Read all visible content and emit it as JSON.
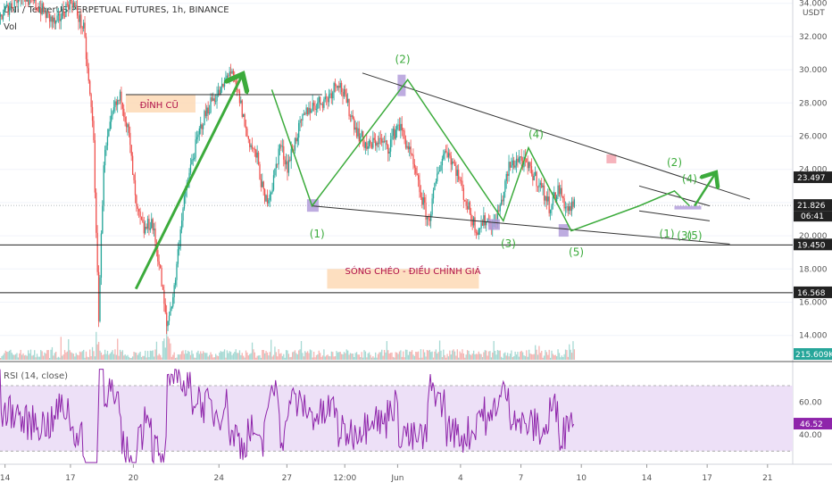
{
  "header": {
    "title": "UNI / TetherUS PERPETUAL FUTURES, 1h, BINANCE",
    "vol_label": "Vol",
    "currency": "USDT"
  },
  "colors": {
    "up": "#26a69a",
    "down": "#ef5350",
    "wave_green": "#3cab3c",
    "channel": "#333333",
    "rsi_line": "#8e24aa",
    "rsi_band": "#ede0f7",
    "box_purple": "#b39ddb",
    "box_orange": "#fdd9b5",
    "box_pink": "#f4a6b0"
  },
  "chart_data": [
    {
      "type": "line",
      "name_role": "price",
      "ylim": [
        13,
        34.5
      ],
      "y_ticks": [
        14,
        16,
        18,
        20,
        22,
        24,
        26,
        28,
        30,
        32,
        34
      ],
      "x_ticks": [
        "14",
        "17",
        "20",
        "24",
        "27",
        "12:00",
        "Jun",
        "4",
        "7",
        "10",
        "14",
        "17",
        "21"
      ],
      "anchors": [
        {
          "t": 0,
          "v": 33.2
        },
        {
          "t": 8,
          "v": 34.6
        },
        {
          "t": 15,
          "v": 33.8
        },
        {
          "t": 22,
          "v": 32.7
        },
        {
          "t": 28,
          "v": 34.3
        },
        {
          "t": 33,
          "v": 32.4
        },
        {
          "t": 37,
          "v": 26.0
        },
        {
          "t": 38,
          "v": 19.8
        },
        {
          "t": 39,
          "v": 15.2
        },
        {
          "t": 41,
          "v": 24.5
        },
        {
          "t": 45,
          "v": 27.6
        },
        {
          "t": 48,
          "v": 28.4
        },
        {
          "t": 51,
          "v": 26.0
        },
        {
          "t": 54,
          "v": 21.5
        },
        {
          "t": 57,
          "v": 20.3
        },
        {
          "t": 60,
          "v": 20.9
        },
        {
          "t": 63,
          "v": 18.4
        },
        {
          "t": 66,
          "v": 14.5
        },
        {
          "t": 69,
          "v": 16.8
        },
        {
          "t": 72,
          "v": 21.2
        },
        {
          "t": 76,
          "v": 24.5
        },
        {
          "t": 80,
          "v": 26.8
        },
        {
          "t": 84,
          "v": 28.2
        },
        {
          "t": 88,
          "v": 28.8
        },
        {
          "t": 91,
          "v": 30.0
        },
        {
          "t": 95,
          "v": 28.2
        },
        {
          "t": 98,
          "v": 26.0
        },
        {
          "t": 102,
          "v": 24.6
        },
        {
          "t": 105,
          "v": 22.0
        },
        {
          "t": 108,
          "v": 23.0
        },
        {
          "t": 111,
          "v": 25.5
        },
        {
          "t": 114,
          "v": 24.2
        },
        {
          "t": 118,
          "v": 26.2
        },
        {
          "t": 122,
          "v": 27.6
        },
        {
          "t": 126,
          "v": 28.0
        },
        {
          "t": 130,
          "v": 28.3
        },
        {
          "t": 134,
          "v": 29.4
        },
        {
          "t": 138,
          "v": 27.8
        },
        {
          "t": 142,
          "v": 26.2
        },
        {
          "t": 146,
          "v": 25.3
        },
        {
          "t": 150,
          "v": 25.8
        },
        {
          "t": 154,
          "v": 25.3
        },
        {
          "t": 158,
          "v": 26.8
        },
        {
          "t": 162,
          "v": 25.3
        },
        {
          "t": 166,
          "v": 23.0
        },
        {
          "t": 170,
          "v": 20.8
        },
        {
          "t": 174,
          "v": 24.0
        },
        {
          "t": 177,
          "v": 25.3
        },
        {
          "t": 181,
          "v": 24.0
        },
        {
          "t": 185,
          "v": 22.0
        },
        {
          "t": 189,
          "v": 20.4
        },
        {
          "t": 193,
          "v": 21.0
        },
        {
          "t": 196,
          "v": 20.6
        },
        {
          "t": 199,
          "v": 22.0
        },
        {
          "t": 202,
          "v": 24.1
        },
        {
          "t": 206,
          "v": 24.7
        },
        {
          "t": 210,
          "v": 24.0
        },
        {
          "t": 214,
          "v": 23.2
        },
        {
          "t": 218,
          "v": 21.8
        },
        {
          "t": 222,
          "v": 22.8
        },
        {
          "t": 225,
          "v": 21.6
        },
        {
          "t": 228,
          "v": 21.8
        }
      ],
      "price_labels": [
        {
          "value": 23.497,
          "text": "23.497",
          "color": "#222222"
        },
        {
          "value": 21.826,
          "text": "21.826",
          "color": "#222222"
        },
        {
          "value": 19.45,
          "text": "19.450",
          "color": "#222222"
        },
        {
          "value": 16.568,
          "text": "16.568",
          "color": "#222222"
        }
      ],
      "countdown": "06:41",
      "horizontal_lines": [
        19.45,
        16.568,
        21.826
      ],
      "resistance_line": {
        "t0": 50,
        "v0": 28.5,
        "t1": 128,
        "v1": 28.5
      },
      "channel_top": {
        "t0": 144,
        "v0": 29.8,
        "t1": 298,
        "v1": 22.2
      },
      "channel_bottom": {
        "t0": 124,
        "v0": 21.8,
        "t1": 290,
        "v1": 19.5
      },
      "small_channel_top": {
        "t0": 254,
        "v0": 23.0,
        "t1": 282,
        "v1": 21.8
      },
      "small_channel_bottom": {
        "t0": 254,
        "v0": 21.5,
        "t1": 282,
        "v1": 20.9
      },
      "impulse_arrow": {
        "t0": 54,
        "v0": 16.8,
        "t1": 96,
        "v1": 29.6
      },
      "wave_path": [
        {
          "t": 108,
          "v": 28.8
        },
        {
          "t": 124,
          "v": 21.8
        },
        {
          "t": 162,
          "v": 29.4
        },
        {
          "t": 200,
          "v": 20.9
        },
        {
          "t": 210,
          "v": 25.3
        },
        {
          "t": 227,
          "v": 20.3
        },
        {
          "t": 254,
          "v": 21.8
        },
        {
          "t": 268,
          "v": 22.7
        },
        {
          "t": 274,
          "v": 21.8
        }
      ],
      "small_wave_arrow": {
        "t0": 276,
        "v0": 21.8,
        "t1": 284,
        "v1": 23.7
      },
      "wave_labels": [
        {
          "text": "(1)",
          "t": 126,
          "v": 19.9
        },
        {
          "text": "(2)",
          "t": 160,
          "v": 30.4
        },
        {
          "text": "(3)",
          "t": 202,
          "v": 19.3
        },
        {
          "text": "(4)",
          "t": 213,
          "v": 25.9
        },
        {
          "text": "(5)",
          "t": 229,
          "v": 18.8
        },
        {
          "text": "(1)",
          "t": 265,
          "v": 19.9
        },
        {
          "text": "(2)",
          "t": 268,
          "v": 24.2
        },
        {
          "text": "(4)",
          "t": 274,
          "v": 23.2
        },
        {
          "text": "(3)",
          "t": 272,
          "v": 19.8
        },
        {
          "text": "(5)",
          "t": 276,
          "v": 19.8
        }
      ],
      "notes": [
        {
          "text": "ĐỈNH CŨ",
          "t": 52,
          "v": 27.7
        },
        {
          "text": "SÓNG CHÉO - ĐIỀU CHỈNH GIÁ",
          "t": 130,
          "v": 17.7
        }
      ],
      "last_vol_label": "215.609K"
    },
    {
      "type": "line",
      "name_role": "rsi",
      "label": "RSI (14, close)",
      "ylim": [
        22,
        82
      ],
      "y_ticks": [
        40,
        60
      ],
      "band": [
        30,
        70
      ],
      "last_value": 46.52,
      "last_text": "46.52"
    }
  ]
}
